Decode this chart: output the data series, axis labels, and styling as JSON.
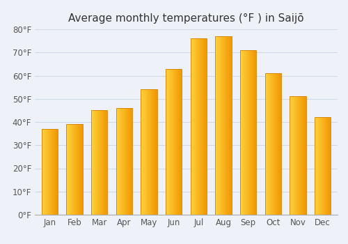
{
  "title": "Average monthly temperatures (°F ) in Saijō",
  "months": [
    "Jan",
    "Feb",
    "Mar",
    "Apr",
    "May",
    "Jun",
    "Jul",
    "Aug",
    "Sep",
    "Oct",
    "Nov",
    "Dec"
  ],
  "values": [
    37,
    39,
    45,
    46,
    54,
    63,
    76,
    77,
    71,
    61,
    51,
    42
  ],
  "ylim": [
    0,
    80
  ],
  "yticks": [
    0,
    10,
    20,
    30,
    40,
    50,
    60,
    70,
    80
  ],
  "ytick_labels": [
    "0°F",
    "10°F",
    "20°F",
    "30°F",
    "40°F",
    "50°F",
    "60°F",
    "70°F",
    "80°F"
  ],
  "bg_color": "#eef2f8",
  "grid_color": "#d0d8e8",
  "title_fontsize": 11,
  "tick_fontsize": 8.5,
  "bar_color_light": "#FFCC44",
  "bar_color_dark": "#F5A000",
  "bar_edge_color": "#D48000"
}
